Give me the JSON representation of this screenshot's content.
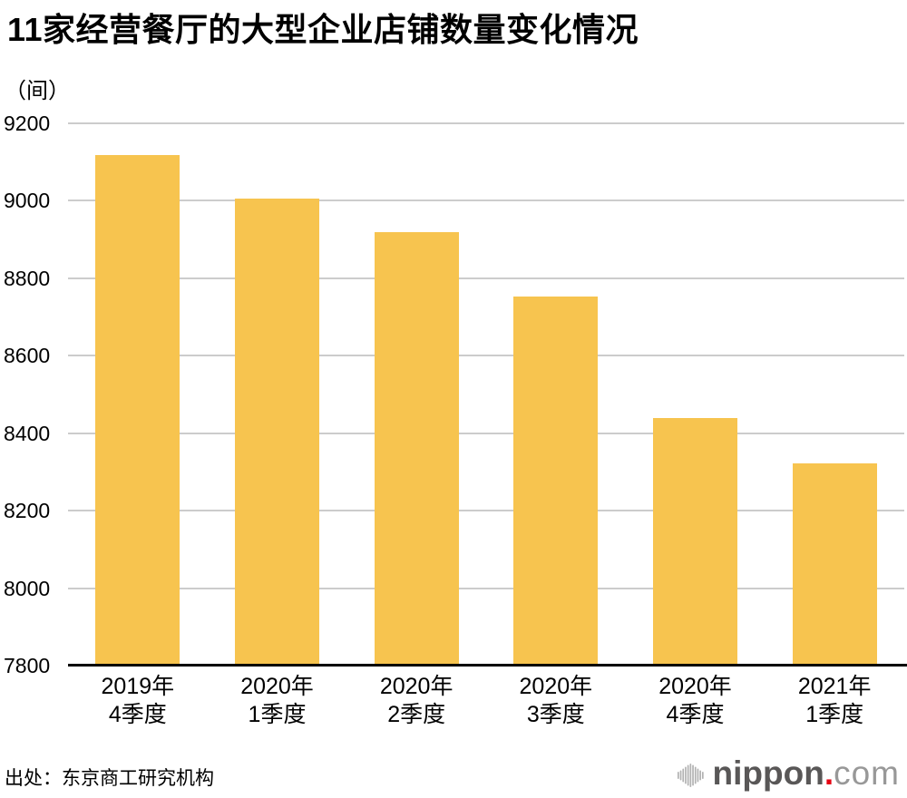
{
  "page": {
    "title": "11家经营餐厅的大型企业店铺数量变化情况",
    "unit_label": "（间）",
    "source_label": "出处：东京商工研究机构"
  },
  "logo": {
    "name": "nippon.com",
    "text_main": "nippon",
    "text_dot": ".",
    "text_suffix": "com",
    "color_main": "#595757",
    "color_dot": "#e60012",
    "color_suffix": "#989898",
    "icon_color": "#b2b2b2"
  },
  "chart_data": {
    "type": "bar",
    "title": "11家经营餐厅的大型企业店铺数量变化情况",
    "ylabel": "（间）",
    "source": "东京商工研究机构",
    "categories": [
      "2019年\n4季度",
      "2020年\n1季度",
      "2020年\n2季度",
      "2020年\n3季度",
      "2020年\n4季度",
      "2021年\n1季度"
    ],
    "values": [
      9117,
      9005,
      8918,
      8752,
      8438,
      8323
    ],
    "ylim": [
      7800,
      9200
    ],
    "yticks": [
      7800,
      8000,
      8200,
      8400,
      8600,
      8800,
      9000,
      9200
    ],
    "bar_color": "#f7c44f",
    "gridline_color": "#cccccc",
    "axis_color": "#000000",
    "legend": "none",
    "grid": "horizontal"
  }
}
